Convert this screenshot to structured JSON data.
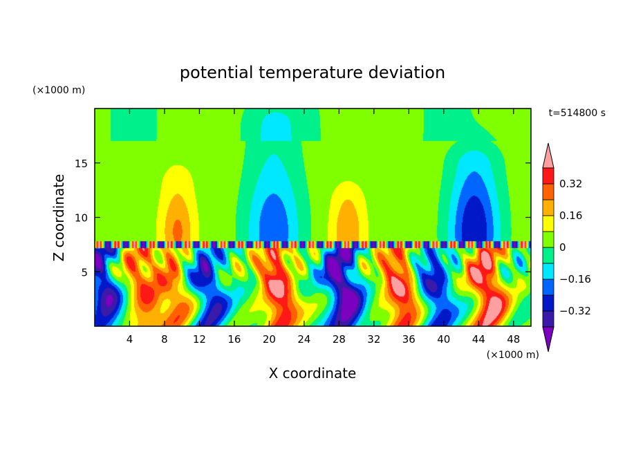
{
  "chart_data": {
    "type": "heatmap",
    "title": "potential temperature deviation",
    "xlabel": "X coordinate",
    "ylabel": "Z coordinate",
    "x_unit": "(×1000 m)",
    "y_unit": "(×1000 m)",
    "time_label": "t=514800 s",
    "xlim": [
      0,
      50
    ],
    "ylim": [
      0,
      20
    ],
    "x_ticks": [
      {
        "value": 4,
        "label": "4"
      },
      {
        "value": 8,
        "label": "8"
      },
      {
        "value": 12,
        "label": "12"
      },
      {
        "value": 16,
        "label": "16"
      },
      {
        "value": 20,
        "label": "20"
      },
      {
        "value": 24,
        "label": "24"
      },
      {
        "value": 28,
        "label": "28"
      },
      {
        "value": 32,
        "label": "32"
      },
      {
        "value": 36,
        "label": "36"
      },
      {
        "value": 40,
        "label": "40"
      },
      {
        "value": 44,
        "label": "44"
      },
      {
        "value": 48,
        "label": "48"
      }
    ],
    "y_ticks": [
      {
        "value": 5,
        "label": "5"
      },
      {
        "value": 10,
        "label": "10"
      },
      {
        "value": 15,
        "label": "15"
      }
    ],
    "colorbar": {
      "levels": [
        -0.4,
        -0.32,
        -0.24,
        -0.16,
        -0.08,
        0,
        0.08,
        0.16,
        0.24,
        0.32,
        0.4
      ],
      "colors": [
        "#7b00c0",
        "#3a1aa8",
        "#0018c8",
        "#0066ff",
        "#00e8ff",
        "#00f08c",
        "#80ff00",
        "#ffff00",
        "#ffb000",
        "#ff6000",
        "#ff1818",
        "#ffa0a0"
      ],
      "labels": [
        {
          "value": 0.32,
          "label": "0.32"
        },
        {
          "value": 0.16,
          "label": "0.16"
        },
        {
          "value": 0,
          "label": "0"
        },
        {
          "value": -0.16,
          "label": "−0.16"
        },
        {
          "value": -0.32,
          "label": "−0.32"
        }
      ]
    },
    "field_features": {
      "background_value": 0.04,
      "upper_plumes": [
        {
          "x": 20.5,
          "z_top": 18.5,
          "amp": -0.22,
          "width": 5
        },
        {
          "x": 43.5,
          "z_top": 15,
          "amp": -0.3,
          "width": 4.5
        },
        {
          "x": 9.5,
          "z_top": 13,
          "amp": 0.18,
          "width": 3
        },
        {
          "x": 29,
          "z_top": 11.5,
          "amp": 0.16,
          "width": 3
        }
      ],
      "inversion_height": 7.5,
      "lower_columns": [
        {
          "x": 21,
          "amp": 0.42
        },
        {
          "x": 35,
          "amp": 0.4
        },
        {
          "x": 45,
          "amp": 0.42
        },
        {
          "x": 5.5,
          "amp": 0.3
        },
        {
          "x": 9,
          "amp": 0.26
        },
        {
          "x": 28.5,
          "amp": -0.45
        },
        {
          "x": 1,
          "amp": -0.35
        },
        {
          "x": 13,
          "amp": -0.3
        },
        {
          "x": 39,
          "amp": -0.3
        }
      ]
    }
  }
}
